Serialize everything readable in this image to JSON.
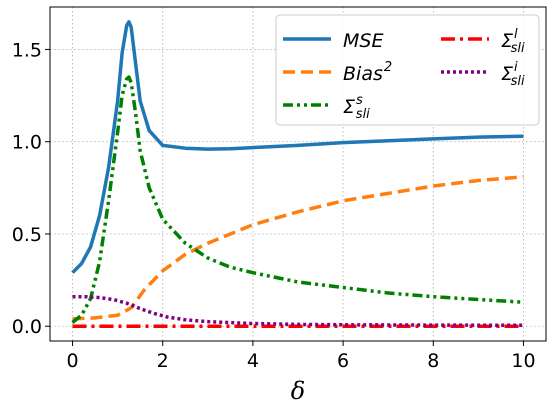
{
  "chart_data": {
    "type": "line",
    "xlabel": "δ",
    "ylabel": "",
    "xlim": [
      -0.5,
      10.5
    ],
    "ylim": [
      -0.08,
      1.73
    ],
    "xticks": [
      0,
      2,
      4,
      6,
      8,
      10
    ],
    "yticks": [
      0.0,
      0.5,
      1.0,
      1.5
    ],
    "xtick_labels": [
      "0",
      "2",
      "4",
      "6",
      "8",
      "10"
    ],
    "ytick_labels": [
      "0.0",
      "0.5",
      "1.0",
      "1.5"
    ],
    "grid": true,
    "legend_position": "top-right",
    "series": [
      {
        "name": "MSE",
        "name_main": "MSE",
        "name_sup": "",
        "name_sub": "",
        "color": "#1f77b4",
        "style": "solid",
        "x": [
          0,
          0.2,
          0.4,
          0.6,
          0.8,
          1.0,
          1.1,
          1.2,
          1.25,
          1.3,
          1.4,
          1.5,
          1.7,
          2.0,
          2.5,
          3.0,
          3.5,
          4.0,
          5.0,
          6.0,
          7.0,
          8.0,
          9.0,
          10.0
        ],
        "y": [
          0.29,
          0.34,
          0.43,
          0.6,
          0.86,
          1.22,
          1.48,
          1.63,
          1.65,
          1.62,
          1.42,
          1.22,
          1.06,
          0.98,
          0.965,
          0.96,
          0.962,
          0.968,
          0.98,
          0.995,
          1.005,
          1.015,
          1.025,
          1.03
        ]
      },
      {
        "name": "Bias^2",
        "name_main": "Bias",
        "name_sup": "2",
        "name_sub": "",
        "color": "#ff7f0e",
        "style": "dashed",
        "x": [
          0,
          0.5,
          1.0,
          1.3,
          1.6,
          2.0,
          2.5,
          3.0,
          3.5,
          4.0,
          5.0,
          6.0,
          7.0,
          8.0,
          9.0,
          10.0
        ],
        "y": [
          0.04,
          0.045,
          0.06,
          0.1,
          0.2,
          0.3,
          0.39,
          0.45,
          0.5,
          0.55,
          0.62,
          0.68,
          0.72,
          0.76,
          0.79,
          0.81
        ]
      },
      {
        "name": "Σ^s_sli",
        "name_main": "Σ",
        "name_sup": "s",
        "name_sub": "sli",
        "color": "#008000",
        "style": "dashdotdot",
        "x": [
          0,
          0.2,
          0.4,
          0.6,
          0.8,
          1.0,
          1.1,
          1.2,
          1.25,
          1.3,
          1.4,
          1.5,
          1.7,
          2.0,
          2.5,
          3.0,
          3.5,
          4.0,
          5.0,
          6.0,
          7.0,
          8.0,
          9.0,
          10.0
        ],
        "y": [
          0.02,
          0.06,
          0.15,
          0.35,
          0.68,
          1.05,
          1.25,
          1.34,
          1.35,
          1.32,
          1.15,
          0.95,
          0.75,
          0.58,
          0.45,
          0.37,
          0.32,
          0.29,
          0.24,
          0.21,
          0.18,
          0.16,
          0.145,
          0.13
        ]
      },
      {
        "name": "Σ^l_sli",
        "name_main": "Σ",
        "name_sup": "l",
        "name_sub": "sli",
        "color": "#ff0000",
        "style": "dashdot",
        "x": [
          0,
          2,
          4,
          6,
          8,
          10
        ],
        "y": [
          0.0,
          0.0,
          0.0,
          0.0,
          0.0,
          0.0
        ]
      },
      {
        "name": "Σ^i_sli",
        "name_main": "Σ",
        "name_sup": "i",
        "name_sub": "sli",
        "color": "#800080",
        "style": "dotted",
        "x": [
          0,
          0.3,
          0.6,
          0.9,
          1.2,
          1.5,
          1.8,
          2.1,
          2.5,
          3.0,
          4.0,
          5.0,
          6.0,
          8.0,
          10.0
        ],
        "y": [
          0.16,
          0.16,
          0.155,
          0.145,
          0.125,
          0.095,
          0.07,
          0.05,
          0.035,
          0.025,
          0.015,
          0.01,
          0.008,
          0.006,
          0.005
        ]
      }
    ]
  }
}
